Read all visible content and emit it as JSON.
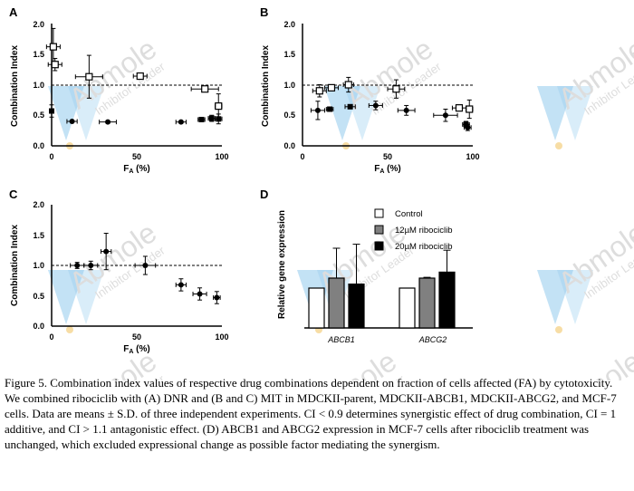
{
  "figure": {
    "watermark": {
      "brand": "Abmole",
      "tagline": "Inhibitor Leader",
      "logo_color": "#4aa6e0",
      "dot_color": "#f2c86a"
    },
    "caption": "Figure 5. Combination index values of respective drug combinations dependent on fraction of cells affected (FA) by cytotoxicity. We combined ribociclib with (A) DNR and (B and C) MIT in MDCKII-parent, MDCKII-ABCB1, MDCKII-ABCG2, and MCF-7 cells. Data are means ± S.D. of three independent experiments. CI < 0.9 determines synergistic effect of drug combination, CI = 1 additive, and CI > 1.1 antagonistic effect. (D) ABCB1 and ABCG2 expression in MCF-7 cells after ribociclib treatment was unchanged, which excluded expressional change as possible factor mediating the synergism."
  },
  "chart_data": [
    {
      "panel": "A",
      "type": "scatter",
      "xlabel": "FA (%)",
      "ylabel": "Combination Index",
      "xlim": [
        0,
        100
      ],
      "ylim": [
        0,
        2.0
      ],
      "xticks": [
        "0",
        "50",
        "100"
      ],
      "yticks": [
        "0.0",
        "0.5",
        "1.0",
        "1.5",
        "2.0"
      ],
      "reference_line": 1.0,
      "series": [
        {
          "name": "open squares",
          "marker": "square-open",
          "points": [
            {
              "x": 1,
              "y": 1.62,
              "xerr": 4,
              "yerr": 0.3
            },
            {
              "x": 2,
              "y": 1.33,
              "xerr": 4,
              "yerr": 0.1
            },
            {
              "x": 22,
              "y": 1.13,
              "xerr": 8,
              "yerr": 0.35
            },
            {
              "x": 52,
              "y": 1.14,
              "xerr": 4,
              "yerr": 0.03
            },
            {
              "x": 90,
              "y": 0.93,
              "xerr": 8,
              "yerr": 0.03
            },
            {
              "x": 98,
              "y": 0.65,
              "xerr": 2,
              "yerr": 0.2
            }
          ]
        },
        {
          "name": "filled squares",
          "marker": "square-filled",
          "points": [
            {
              "x": 0,
              "y": 0.57,
              "xerr": 1,
              "yerr": 0.1
            },
            {
              "x": 88,
              "y": 0.43,
              "xerr": 2,
              "yerr": 0.03
            },
            {
              "x": 94,
              "y": 0.45,
              "xerr": 2,
              "yerr": 0.05
            },
            {
              "x": 98,
              "y": 0.44,
              "xerr": 2,
              "yerr": 0.08
            }
          ]
        },
        {
          "name": "filled circles",
          "marker": "circle-filled",
          "points": [
            {
              "x": 12,
              "y": 0.4,
              "xerr": 3,
              "yerr": 0.02
            },
            {
              "x": 33,
              "y": 0.39,
              "xerr": 5,
              "yerr": 0.02
            },
            {
              "x": 76,
              "y": 0.39,
              "xerr": 3,
              "yerr": 0.02
            }
          ]
        }
      ]
    },
    {
      "panel": "B",
      "type": "scatter",
      "xlabel": "FA (%)",
      "ylabel": "Combination Index",
      "xlim": [
        0,
        100
      ],
      "ylim": [
        0,
        2.0
      ],
      "xticks": [
        "0",
        "50",
        "100"
      ],
      "yticks": [
        "0.0",
        "0.5",
        "1.0",
        "1.5",
        "2.0"
      ],
      "reference_line": 1.0,
      "series": [
        {
          "name": "open squares",
          "marker": "square-open",
          "points": [
            {
              "x": 10,
              "y": 0.9,
              "xerr": 4,
              "yerr": 0.1
            },
            {
              "x": 17,
              "y": 0.95,
              "xerr": 4,
              "yerr": 0.05
            },
            {
              "x": 27,
              "y": 1.0,
              "xerr": 3,
              "yerr": 0.12
            },
            {
              "x": 55,
              "y": 0.93,
              "xerr": 5,
              "yerr": 0.15
            },
            {
              "x": 92,
              "y": 0.62,
              "xerr": 4,
              "yerr": 0.05
            },
            {
              "x": 98,
              "y": 0.6,
              "xerr": 2,
              "yerr": 0.15
            }
          ]
        },
        {
          "name": "filled squares",
          "marker": "square-filled",
          "points": [
            {
              "x": 16,
              "y": 0.6,
              "xerr": 2,
              "yerr": 0.03
            },
            {
              "x": 28,
              "y": 0.64,
              "xerr": 3,
              "yerr": 0.03
            },
            {
              "x": 96,
              "y": 0.35,
              "xerr": 2,
              "yerr": 0.05
            }
          ]
        },
        {
          "name": "filled circles",
          "marker": "circle-filled",
          "points": [
            {
              "x": 9,
              "y": 0.58,
              "xerr": 4,
              "yerr": 0.15
            },
            {
              "x": 43,
              "y": 0.66,
              "xerr": 4,
              "yerr": 0.07
            },
            {
              "x": 61,
              "y": 0.58,
              "xerr": 5,
              "yerr": 0.08
            },
            {
              "x": 84,
              "y": 0.5,
              "xerr": 7,
              "yerr": 0.1
            },
            {
              "x": 97,
              "y": 0.3,
              "xerr": 2,
              "yerr": 0.05
            }
          ]
        }
      ]
    },
    {
      "panel": "C",
      "type": "scatter",
      "xlabel": "FA (%)",
      "ylabel": "Combination Index",
      "xlim": [
        0,
        100
      ],
      "ylim": [
        0,
        2.0
      ],
      "xticks": [
        "0",
        "50",
        "100"
      ],
      "yticks": [
        "0.0",
        "0.5",
        "1.0",
        "1.5",
        "2.0"
      ],
      "reference_line": 1.0,
      "series": [
        {
          "name": "filled circles",
          "marker": "circle-filled",
          "points": [
            {
              "x": 15,
              "y": 1.0,
              "xerr": 4,
              "yerr": 0.05
            },
            {
              "x": 23,
              "y": 1.0,
              "xerr": 4,
              "yerr": 0.07
            },
            {
              "x": 32,
              "y": 1.23,
              "xerr": 3,
              "yerr": 0.3
            },
            {
              "x": 55,
              "y": 1.0,
              "xerr": 6,
              "yerr": 0.15
            },
            {
              "x": 76,
              "y": 0.68,
              "xerr": 3,
              "yerr": 0.1
            },
            {
              "x": 87,
              "y": 0.53,
              "xerr": 4,
              "yerr": 0.1
            },
            {
              "x": 97,
              "y": 0.47,
              "xerr": 2,
              "yerr": 0.1
            }
          ]
        }
      ]
    },
    {
      "panel": "D",
      "type": "bar",
      "ylabel": "Relative gene expression",
      "categories": [
        "ABCB1",
        "ABCG2"
      ],
      "ylim": [
        0,
        3.0
      ],
      "series": [
        {
          "name": "Control",
          "color": "#ffffff",
          "values": [
            1.0,
            1.0
          ],
          "errors": [
            0.0,
            0.0
          ]
        },
        {
          "name": "12µM ribociclib",
          "color": "#808080",
          "values": [
            1.25,
            1.25
          ],
          "errors": [
            0.75,
            0.02
          ]
        },
        {
          "name": "20µM ribociclib",
          "color": "#000000",
          "values": [
            1.1,
            1.4
          ],
          "errors": [
            1.0,
            0.55
          ]
        }
      ]
    }
  ]
}
